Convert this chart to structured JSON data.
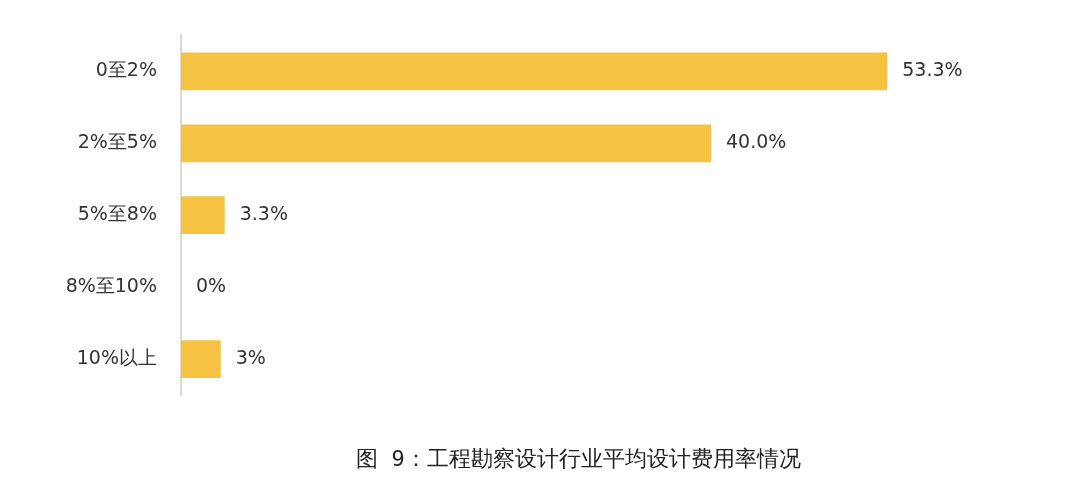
{
  "chart_data": {
    "type": "bar",
    "orientation": "horizontal",
    "title": "图 9：工程勘察设计行业平均设计费用率情况",
    "categories": [
      "0至2%",
      "2%至5%",
      "5%至8%",
      "8%至10%",
      "10%以上"
    ],
    "values": [
      53.3,
      40.0,
      3.3,
      0,
      3
    ],
    "value_labels": [
      "53.3%",
      "40.0%",
      "3.3%",
      "0%",
      "3%"
    ],
    "color": "#f5c242"
  }
}
